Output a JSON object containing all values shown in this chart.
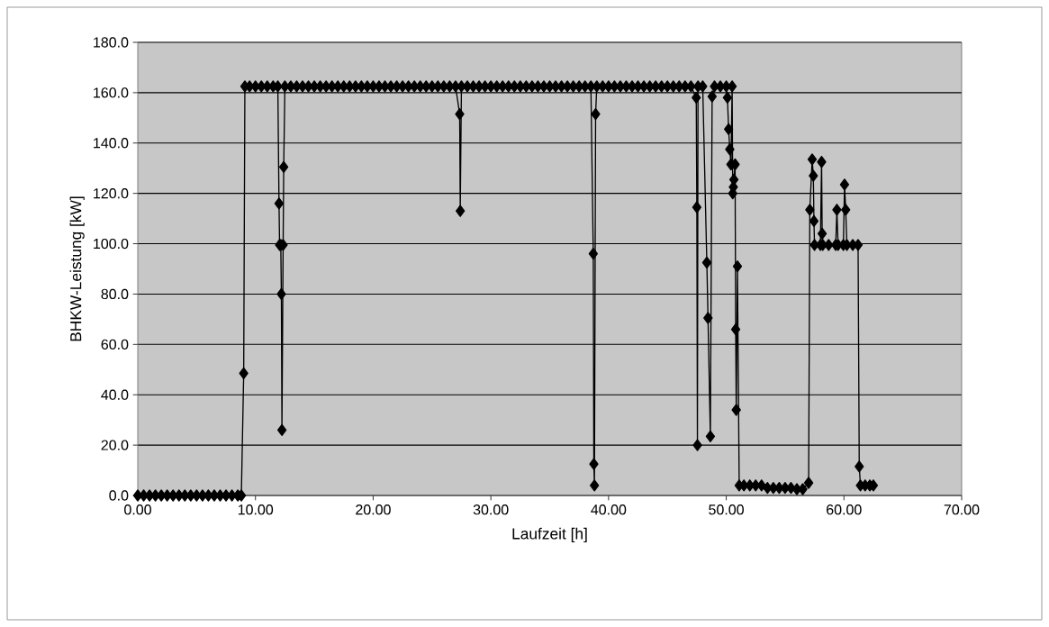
{
  "chart_data": {
    "type": "line",
    "xlabel": "Laufzeit [h]",
    "ylabel": "BHKW-Leistung [kW]",
    "xlim": [
      0,
      70
    ],
    "ylim": [
      0,
      180
    ],
    "xticks": [
      {
        "value": 0,
        "label": "0.00"
      },
      {
        "value": 10,
        "label": "10.00"
      },
      {
        "value": 20,
        "label": "20.00"
      },
      {
        "value": 30,
        "label": "30.00"
      },
      {
        "value": 40,
        "label": "40.00"
      },
      {
        "value": 50,
        "label": "50.00"
      },
      {
        "value": 60,
        "label": "60.00"
      },
      {
        "value": 70,
        "label": "70.00"
      }
    ],
    "yticks": [
      {
        "value": 0,
        "label": "0.0"
      },
      {
        "value": 20,
        "label": "20.0"
      },
      {
        "value": 40,
        "label": "40.0"
      },
      {
        "value": 60,
        "label": "60.0"
      },
      {
        "value": 80,
        "label": "80.0"
      },
      {
        "value": 100,
        "label": "100.0"
      },
      {
        "value": 120,
        "label": "120.0"
      },
      {
        "value": 140,
        "label": "140.0"
      },
      {
        "value": 160,
        "label": "160.0"
      },
      {
        "value": 180,
        "label": "180.0"
      }
    ],
    "grid": "y",
    "marker": "diamond",
    "line_style": "solid",
    "series": [
      {
        "color": "#000000",
        "x": [
          0,
          0.5,
          1,
          1.5,
          2,
          2.5,
          3,
          3.5,
          4,
          4.5,
          5,
          5.5,
          6,
          6.5,
          7,
          7.5,
          8,
          8.5,
          8.8,
          9.0,
          9.1,
          9.5,
          10,
          10.5,
          11,
          11.5,
          11.9,
          12.0,
          12.05,
          12.15,
          12.2,
          12.25,
          12.35,
          12.4,
          12.5,
          13,
          13.5,
          14,
          14.5,
          15,
          15.5,
          16,
          16.5,
          17,
          17.5,
          18,
          18.5,
          19,
          19.5,
          20,
          20.5,
          21,
          21.5,
          22,
          22.5,
          23,
          23.5,
          24,
          24.5,
          25,
          25.5,
          26,
          26.5,
          27,
          27.35,
          27.4,
          27.5,
          28,
          28.5,
          29,
          29.5,
          30,
          30.5,
          31,
          31.5,
          32,
          32.5,
          33,
          33.5,
          34,
          34.5,
          35,
          35.5,
          36,
          36.5,
          37,
          37.5,
          38,
          38.5,
          38.7,
          38.75,
          38.8,
          38.9,
          39,
          39.5,
          40,
          40.5,
          41,
          41.5,
          42,
          42.5,
          43,
          43.5,
          44,
          44.5,
          45,
          45.5,
          46,
          46.5,
          47,
          47.45,
          47.5,
          47.55,
          47.6,
          48,
          48.35,
          48.45,
          48.65,
          48.8,
          49,
          49.5,
          50,
          50.1,
          50.2,
          50.3,
          50.4,
          50.5,
          50.55,
          50.6,
          50.65,
          50.75,
          50.8,
          50.85,
          50.95,
          51.1,
          51.5,
          52,
          52.5,
          53,
          53.5,
          54,
          54.5,
          55,
          55.5,
          56,
          56.5,
          57,
          57.1,
          57.3,
          57.4,
          57.45,
          57.5,
          58,
          58.1,
          58.15,
          58.2,
          58.7,
          59.3,
          59.4,
          59.5,
          59.95,
          60.05,
          60.15,
          60.25,
          60.75,
          61.2,
          61.3,
          61.4,
          61.8,
          62.2,
          62.5
        ],
        "values": [
          0,
          0,
          0,
          0,
          0,
          0,
          0,
          0,
          0,
          0,
          0,
          0,
          0,
          0,
          0,
          0,
          0,
          0,
          0,
          48.5,
          162.5,
          162.5,
          162.5,
          162.5,
          162.5,
          162.5,
          162.5,
          116,
          99.5,
          99.5,
          80,
          26,
          99.5,
          130.5,
          162.5,
          162.5,
          162.5,
          162.5,
          162.5,
          162.5,
          162.5,
          162.5,
          162.5,
          162.5,
          162.5,
          162.5,
          162.5,
          162.5,
          162.5,
          162.5,
          162.5,
          162.5,
          162.5,
          162.5,
          162.5,
          162.5,
          162.5,
          162.5,
          162.5,
          162.5,
          162.5,
          162.5,
          162.5,
          162.5,
          151.5,
          113,
          162.5,
          162.5,
          162.5,
          162.5,
          162.5,
          162.5,
          162.5,
          162.5,
          162.5,
          162.5,
          162.5,
          162.5,
          162.5,
          162.5,
          162.5,
          162.5,
          162.5,
          162.5,
          162.5,
          162.5,
          162.5,
          162.5,
          162.5,
          96,
          12.5,
          4,
          151.5,
          162.5,
          162.5,
          162.5,
          162.5,
          162.5,
          162.5,
          162.5,
          162.5,
          162.5,
          162.5,
          162.5,
          162.5,
          162.5,
          162.5,
          162.5,
          162.5,
          162.5,
          158,
          114.5,
          20,
          162.5,
          162.5,
          92.5,
          70.5,
          23.5,
          158.5,
          162.5,
          162.5,
          162.5,
          158,
          145.5,
          137.5,
          131.5,
          162.5,
          120,
          122.5,
          125.5,
          131.5,
          66,
          34,
          91,
          4,
          4,
          4,
          4,
          4,
          3,
          3,
          3,
          3,
          3,
          2.5,
          2.5,
          5,
          113.5,
          133.5,
          127,
          109,
          99.5,
          99.5,
          132.5,
          104,
          99.5,
          99.5,
          99.5,
          113.5,
          99.5,
          99.5,
          123.5,
          113.5,
          99.5,
          99.5,
          99.5,
          11.5,
          4,
          4,
          4,
          4
        ]
      }
    ]
  }
}
